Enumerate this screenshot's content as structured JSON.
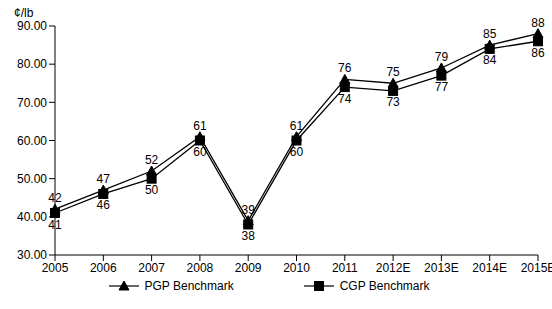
{
  "chart_data": {
    "type": "line",
    "y_label": "¢/lb",
    "categories": [
      "2005",
      "2006",
      "2007",
      "2008",
      "2009",
      "2010",
      "2011",
      "2012E",
      "2013E",
      "2014E",
      "2015E"
    ],
    "series": [
      {
        "name": "PGP Benchmark",
        "color": "#000000",
        "marker": "triangle",
        "line_style": "solid",
        "values": [
          42,
          47,
          52,
          61,
          39,
          61,
          76,
          75,
          79,
          85,
          88
        ]
      },
      {
        "name": "CGP Benchmark",
        "color": "#000000",
        "marker": "square",
        "line_style": "solid",
        "values": [
          41,
          46,
          50,
          60,
          38,
          60,
          74,
          73,
          77,
          84,
          86
        ]
      }
    ],
    "ylim": [
      30,
      90
    ],
    "yticks": [
      {
        "value": 30,
        "label": "30.00"
      },
      {
        "value": 40,
        "label": "40.00"
      },
      {
        "value": 50,
        "label": "50.00"
      },
      {
        "value": 60,
        "label": "60.00"
      },
      {
        "value": 70,
        "label": "70.00"
      },
      {
        "value": 80,
        "label": "80.00"
      },
      {
        "value": 90,
        "label": "90.00"
      }
    ],
    "grid": false,
    "legend": "bottom",
    "data_labels": true
  }
}
